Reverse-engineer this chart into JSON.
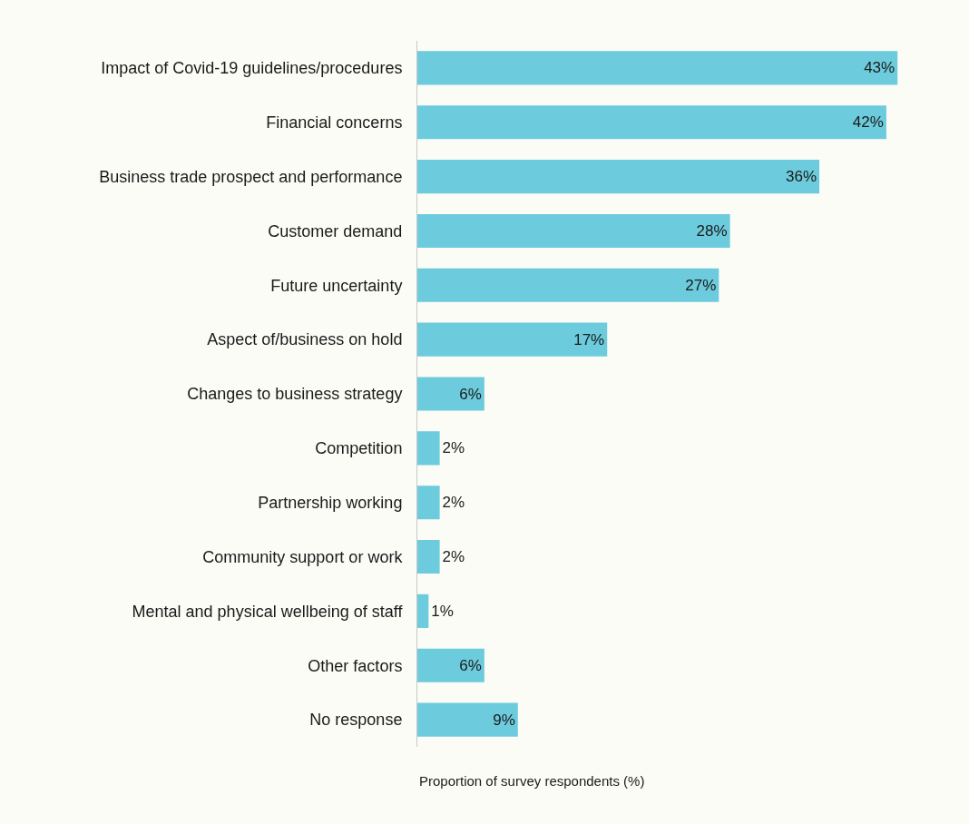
{
  "chart_data": {
    "type": "bar",
    "orientation": "horizontal",
    "xlabel": "Proportion of survey respondents (%)",
    "categories": [
      "Impact of Covid-19 guidelines/procedures",
      "Financial concerns",
      "Business trade prospect and performance",
      "Customer demand",
      "Future uncertainty",
      "Aspect of/business on hold",
      "Changes to business strategy",
      "Competition",
      "Partnership working",
      "Community support or work",
      "Mental and physical wellbeing of staff",
      "Other factors",
      "No response"
    ],
    "values": [
      43,
      42,
      36,
      28,
      27,
      17,
      6,
      2,
      2,
      2,
      1,
      6,
      9
    ],
    "value_labels": [
      "43%",
      "42%",
      "36%",
      "28%",
      "27%",
      "17%",
      "6%",
      "2%",
      "2%",
      "2%",
      "1%",
      "6%",
      "9%"
    ],
    "color": "#6ccbdc",
    "tick_labels": "y",
    "grid": false,
    "legend": false
  }
}
